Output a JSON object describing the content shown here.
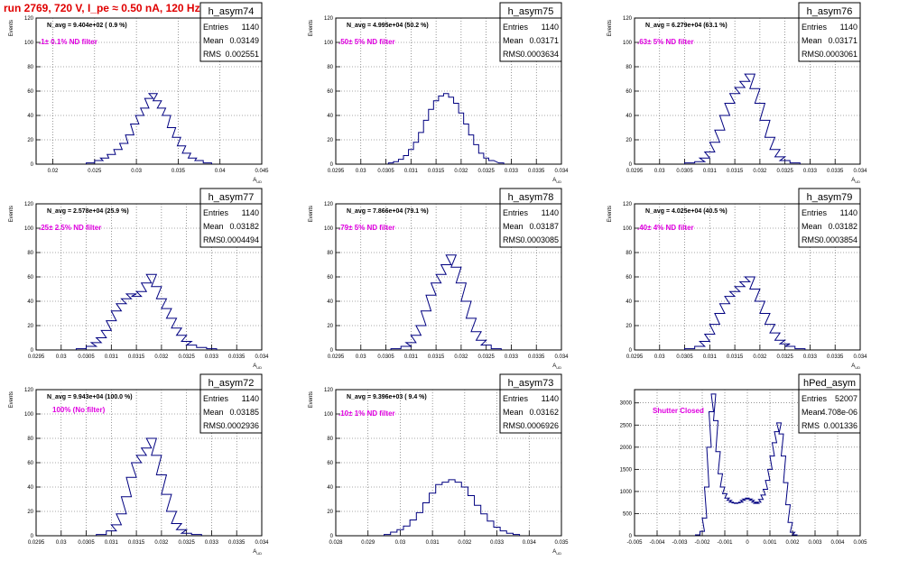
{
  "page_title": "run 2769,   720 V, I_pe ≈ 0.50 nA, 120 Hz",
  "chart_data": [
    {
      "type": "histogram",
      "name": "h_asym74",
      "nav_label": "N_avg = 9.404e+02 ( 0.9 %)",
      "filter_label": ".1± 0.1% ND filter",
      "stats": {
        "entries": "1140",
        "mean": "0.03149",
        "rms": "0.002551"
      },
      "ylabel": "Events",
      "xlabel": "A_UD",
      "xlim": [
        0.018,
        0.045
      ],
      "ylim": [
        0,
        120
      ],
      "xticks": [
        "0.02",
        "0.025",
        "0.03",
        "0.035",
        "0.04",
        "0.045"
      ],
      "yticks": [
        "0",
        "20",
        "40",
        "60",
        "80",
        "100",
        "120"
      ],
      "bins": [
        [
          0.0245,
          1
        ],
        [
          0.0255,
          3
        ],
        [
          0.0262,
          5
        ],
        [
          0.027,
          8
        ],
        [
          0.0278,
          12
        ],
        [
          0.0285,
          17
        ],
        [
          0.0292,
          24
        ],
        [
          0.0298,
          33
        ],
        [
          0.0304,
          40
        ],
        [
          0.031,
          46
        ],
        [
          0.0315,
          54
        ],
        [
          0.032,
          58
        ],
        [
          0.0325,
          52
        ],
        [
          0.033,
          46
        ],
        [
          0.0336,
          40
        ],
        [
          0.0342,
          30
        ],
        [
          0.0348,
          22
        ],
        [
          0.0354,
          15
        ],
        [
          0.036,
          9
        ],
        [
          0.0367,
          5
        ],
        [
          0.0375,
          3
        ],
        [
          0.0385,
          1
        ]
      ]
    },
    {
      "type": "histogram",
      "name": "h_asym75",
      "nav_label": "N_avg = 4.995e+04 (50.2 %)",
      "filter_label": ".50± 5% ND filter",
      "stats": {
        "entries": "1140",
        "mean": "0.03171",
        "rms": "0.0003634"
      },
      "ylabel": "Events",
      "xlabel": "A_UD",
      "xlim": [
        0.0295,
        0.034
      ],
      "ylim": [
        0,
        120
      ],
      "xticks": [
        "0.0295",
        "0.03",
        "0.0305",
        "0.031",
        "0.0315",
        "0.032",
        "0.0325",
        "0.033",
        "0.0335",
        "0.034"
      ],
      "yticks": [
        "0",
        "20",
        "40",
        "60",
        "80",
        "100",
        "120"
      ],
      "bins": [
        [
          0.0306,
          1
        ],
        [
          0.0307,
          2
        ],
        [
          0.0308,
          4
        ],
        [
          0.0309,
          7
        ],
        [
          0.031,
          12
        ],
        [
          0.0311,
          18
        ],
        [
          0.0312,
          26
        ],
        [
          0.0313,
          36
        ],
        [
          0.0314,
          45
        ],
        [
          0.0315,
          52
        ],
        [
          0.0316,
          56
        ],
        [
          0.0317,
          58
        ],
        [
          0.0318,
          55
        ],
        [
          0.0319,
          50
        ],
        [
          0.032,
          42
        ],
        [
          0.0321,
          33
        ],
        [
          0.0322,
          24
        ],
        [
          0.0323,
          16
        ],
        [
          0.0324,
          9
        ],
        [
          0.0325,
          5
        ],
        [
          0.0326,
          3
        ],
        [
          0.0328,
          1
        ]
      ]
    },
    {
      "type": "histogram",
      "name": "h_asym76",
      "nav_label": "N_avg = 6.279e+04 (63.1 %)",
      "filter_label": ".63± 5% ND filter",
      "stats": {
        "entries": "1140",
        "mean": "0.03171",
        "rms": "0.0003061"
      },
      "ylabel": "Events",
      "xlabel": "A_UD",
      "xlim": [
        0.0295,
        0.034
      ],
      "ylim": [
        0,
        120
      ],
      "xticks": [
        "0.0295",
        "0.03",
        "0.0305",
        "0.031",
        "0.0315",
        "0.032",
        "0.0325",
        "0.033",
        "0.0335",
        "0.034"
      ],
      "yticks": [
        "0",
        "20",
        "40",
        "60",
        "80",
        "100",
        "120"
      ],
      "bins": [
        [
          0.0306,
          1
        ],
        [
          0.0308,
          2
        ],
        [
          0.0309,
          5
        ],
        [
          0.031,
          10
        ],
        [
          0.0311,
          18
        ],
        [
          0.0312,
          28
        ],
        [
          0.0313,
          40
        ],
        [
          0.0314,
          50
        ],
        [
          0.0315,
          58
        ],
        [
          0.0316,
          63
        ],
        [
          0.0317,
          68
        ],
        [
          0.0318,
          74
        ],
        [
          0.0319,
          62
        ],
        [
          0.032,
          50
        ],
        [
          0.0321,
          36
        ],
        [
          0.0322,
          22
        ],
        [
          0.0323,
          12
        ],
        [
          0.0324,
          6
        ],
        [
          0.0325,
          3
        ],
        [
          0.0327,
          1
        ]
      ]
    },
    {
      "type": "histogram",
      "name": "h_asym77",
      "nav_label": "N_avg = 2.578e+04 (25.9 %)",
      "filter_label": ".25± 2.5% ND filter",
      "stats": {
        "entries": "1140",
        "mean": "0.03182",
        "rms": "0.0004494"
      },
      "ylabel": "Events",
      "xlabel": "A_UD",
      "xlim": [
        0.0295,
        0.034
      ],
      "ylim": [
        0,
        120
      ],
      "xticks": [
        "0.0295",
        "0.03",
        "0.0305",
        "0.031",
        "0.0315",
        "0.032",
        "0.0325",
        "0.033",
        "0.0335",
        "0.034"
      ],
      "yticks": [
        "0",
        "20",
        "40",
        "60",
        "80",
        "100",
        "120"
      ],
      "bins": [
        [
          0.0304,
          1
        ],
        [
          0.0306,
          3
        ],
        [
          0.0307,
          6
        ],
        [
          0.0308,
          10
        ],
        [
          0.0309,
          16
        ],
        [
          0.031,
          24
        ],
        [
          0.0311,
          32
        ],
        [
          0.0312,
          38
        ],
        [
          0.0313,
          42
        ],
        [
          0.0314,
          46
        ],
        [
          0.0315,
          44
        ],
        [
          0.0316,
          48
        ],
        [
          0.0317,
          55
        ],
        [
          0.0318,
          62
        ],
        [
          0.0319,
          52
        ],
        [
          0.032,
          42
        ],
        [
          0.0321,
          34
        ],
        [
          0.0322,
          26
        ],
        [
          0.0323,
          18
        ],
        [
          0.0324,
          12
        ],
        [
          0.0325,
          7
        ],
        [
          0.0326,
          4
        ],
        [
          0.0328,
          2
        ],
        [
          0.033,
          1
        ]
      ]
    },
    {
      "type": "histogram",
      "name": "h_asym78",
      "nav_label": "N_avg = 7.866e+04 (79.1 %)",
      "filter_label": ".79± 5% ND filter",
      "stats": {
        "entries": "1140",
        "mean": "0.03187",
        "rms": "0.0003085"
      },
      "ylabel": "Events",
      "xlabel": "A_UD",
      "xlim": [
        0.0295,
        0.034
      ],
      "ylim": [
        0,
        120
      ],
      "xticks": [
        "0.0295",
        "0.03",
        "0.0305",
        "0.031",
        "0.0315",
        "0.032",
        "0.0325",
        "0.033",
        "0.0335",
        "0.034"
      ],
      "yticks": [
        "0",
        "20",
        "40",
        "60",
        "80",
        "100",
        "120"
      ],
      "bins": [
        [
          0.0307,
          1
        ],
        [
          0.0309,
          3
        ],
        [
          0.031,
          6
        ],
        [
          0.0311,
          12
        ],
        [
          0.0312,
          20
        ],
        [
          0.0313,
          32
        ],
        [
          0.0314,
          45
        ],
        [
          0.0315,
          55
        ],
        [
          0.0316,
          62
        ],
        [
          0.0317,
          70
        ],
        [
          0.0318,
          78
        ],
        [
          0.0319,
          68
        ],
        [
          0.032,
          55
        ],
        [
          0.0321,
          40
        ],
        [
          0.0322,
          26
        ],
        [
          0.0323,
          15
        ],
        [
          0.0324,
          8
        ],
        [
          0.0325,
          4
        ],
        [
          0.0327,
          1
        ]
      ]
    },
    {
      "type": "histogram",
      "name": "h_asym79",
      "nav_label": "N_avg = 4.025e+04 (40.5 %)",
      "filter_label": ".40± 4% ND filter",
      "stats": {
        "entries": "1140",
        "mean": "0.03182",
        "rms": "0.0003854"
      },
      "ylabel": "Events",
      "xlabel": "A_UD",
      "xlim": [
        0.0295,
        0.034
      ],
      "ylim": [
        0,
        120
      ],
      "xticks": [
        "0.0295",
        "0.03",
        "0.0305",
        "0.031",
        "0.0315",
        "0.032",
        "0.0325",
        "0.033",
        "0.0335",
        "0.034"
      ],
      "yticks": [
        "0",
        "20",
        "40",
        "60",
        "80",
        "100",
        "120"
      ],
      "bins": [
        [
          0.0306,
          1
        ],
        [
          0.0308,
          3
        ],
        [
          0.0309,
          7
        ],
        [
          0.031,
          13
        ],
        [
          0.0311,
          21
        ],
        [
          0.0312,
          30
        ],
        [
          0.0313,
          38
        ],
        [
          0.0314,
          44
        ],
        [
          0.0315,
          48
        ],
        [
          0.0316,
          52
        ],
        [
          0.0317,
          56
        ],
        [
          0.0318,
          60
        ],
        [
          0.0319,
          50
        ],
        [
          0.032,
          40
        ],
        [
          0.0321,
          30
        ],
        [
          0.0322,
          21
        ],
        [
          0.0323,
          14
        ],
        [
          0.0324,
          8
        ],
        [
          0.0325,
          5
        ],
        [
          0.0326,
          3
        ],
        [
          0.0328,
          1
        ]
      ]
    },
    {
      "type": "histogram",
      "name": "h_asym72",
      "nav_label": "N_avg = 9.943e+04 (100.0 %)",
      "filter_label": "100% (No filter)",
      "stats": {
        "entries": "1140",
        "mean": "0.03185",
        "rms": "0.0002936"
      },
      "ylabel": "Events",
      "xlabel": "A_UD",
      "xlim": [
        0.0295,
        0.034
      ],
      "ylim": [
        0,
        120
      ],
      "xticks": [
        "0.0295",
        "0.03",
        "0.0305",
        "0.031",
        "0.0315",
        "0.032",
        "0.0325",
        "0.033",
        "0.0335",
        "0.034"
      ],
      "yticks": [
        "0",
        "20",
        "40",
        "60",
        "80",
        "100",
        "120"
      ],
      "bins": [
        [
          0.0308,
          1
        ],
        [
          0.031,
          4
        ],
        [
          0.0311,
          9
        ],
        [
          0.0312,
          18
        ],
        [
          0.0313,
          32
        ],
        [
          0.0314,
          48
        ],
        [
          0.0315,
          60
        ],
        [
          0.0316,
          66
        ],
        [
          0.0317,
          72
        ],
        [
          0.0318,
          80
        ],
        [
          0.0319,
          66
        ],
        [
          0.032,
          50
        ],
        [
          0.0321,
          34
        ],
        [
          0.0322,
          20
        ],
        [
          0.0323,
          10
        ],
        [
          0.0324,
          5
        ],
        [
          0.0325,
          2
        ],
        [
          0.0327,
          1
        ]
      ]
    },
    {
      "type": "histogram",
      "name": "h_asym73",
      "nav_label": "N_avg = 9.396e+03 ( 9.4 %)",
      "filter_label": ".10± 1% ND filter",
      "stats": {
        "entries": "1140",
        "mean": "0.03162",
        "rms": "0.0006926"
      },
      "ylabel": "Events",
      "xlabel": "A_UD",
      "xlim": [
        0.028,
        0.035
      ],
      "ylim": [
        0,
        120
      ],
      "xticks": [
        "0.028",
        "0.029",
        "0.03",
        "0.031",
        "0.032",
        "0.033",
        "0.034",
        "0.035"
      ],
      "yticks": [
        "0",
        "20",
        "40",
        "60",
        "80",
        "100",
        "120"
      ],
      "bins": [
        [
          0.0296,
          1
        ],
        [
          0.0298,
          3
        ],
        [
          0.03,
          5
        ],
        [
          0.0302,
          8
        ],
        [
          0.0304,
          13
        ],
        [
          0.0306,
          19
        ],
        [
          0.0308,
          27
        ],
        [
          0.031,
          35
        ],
        [
          0.0312,
          42
        ],
        [
          0.0314,
          44
        ],
        [
          0.0316,
          46
        ],
        [
          0.0318,
          44
        ],
        [
          0.032,
          40
        ],
        [
          0.0322,
          33
        ],
        [
          0.0324,
          25
        ],
        [
          0.0326,
          18
        ],
        [
          0.0328,
          12
        ],
        [
          0.033,
          7
        ],
        [
          0.0332,
          4
        ],
        [
          0.0334,
          2
        ],
        [
          0.0336,
          1
        ]
      ]
    },
    {
      "type": "histogram",
      "name": "hPed_asym",
      "nav_label": "",
      "filter_label": "Shutter Closed",
      "stats": {
        "entries": "52007",
        "mean": "4.708e-06",
        "rms": "0.001336"
      },
      "ylabel": "",
      "xlabel": "",
      "xlim": [
        -0.005,
        0.005
      ],
      "ylim": [
        0,
        3300
      ],
      "xticks": [
        "-0.005",
        "-0.004",
        "-0.003",
        "-0.002",
        "-0.001",
        "0",
        "0.001",
        "0.002",
        "0.003",
        "0.004",
        "0.005"
      ],
      "yticks": [
        "0",
        "500",
        "1000",
        "1500",
        "2000",
        "2500",
        "3000"
      ],
      "bins": [
        [
          -0.0022,
          20
        ],
        [
          -0.002,
          100
        ],
        [
          -0.0019,
          400
        ],
        [
          -0.0018,
          1100
        ],
        [
          -0.0017,
          2000
        ],
        [
          -0.0016,
          2800
        ],
        [
          -0.0015,
          3200
        ],
        [
          -0.0014,
          2600
        ],
        [
          -0.0013,
          1900
        ],
        [
          -0.0012,
          1400
        ],
        [
          -0.0011,
          1100
        ],
        [
          -0.001,
          950
        ],
        [
          -0.0009,
          850
        ],
        [
          -0.0008,
          800
        ],
        [
          -0.0007,
          760
        ],
        [
          -0.0006,
          740
        ],
        [
          -0.0005,
          730
        ],
        [
          -0.0004,
          740
        ],
        [
          -0.0003,
          760
        ],
        [
          -0.0002,
          800
        ],
        [
          -0.0001,
          830
        ],
        [
          0.0,
          850
        ],
        [
          0.0001,
          830
        ],
        [
          0.0002,
          800
        ],
        [
          0.0003,
          760
        ],
        [
          0.0004,
          730
        ],
        [
          0.0005,
          760
        ],
        [
          0.0006,
          820
        ],
        [
          0.0007,
          920
        ],
        [
          0.0008,
          1050
        ],
        [
          0.0009,
          1250
        ],
        [
          0.001,
          1500
        ],
        [
          0.0011,
          1800
        ],
        [
          0.0012,
          2100
        ],
        [
          0.0013,
          2350
        ],
        [
          0.0014,
          2550
        ],
        [
          0.0015,
          2300
        ],
        [
          0.0016,
          1800
        ],
        [
          0.0017,
          1200
        ],
        [
          0.0018,
          700
        ],
        [
          0.0019,
          300
        ],
        [
          0.002,
          80
        ],
        [
          0.0021,
          20
        ]
      ]
    }
  ]
}
